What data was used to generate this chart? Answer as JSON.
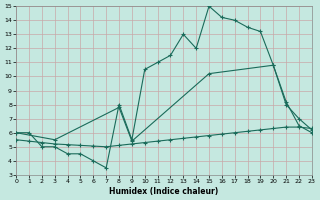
{
  "xlabel": "Humidex (Indice chaleur)",
  "xlim": [
    0,
    23
  ],
  "ylim": [
    3,
    15
  ],
  "yticks": [
    3,
    4,
    5,
    6,
    7,
    8,
    9,
    10,
    11,
    12,
    13,
    14,
    15
  ],
  "xticks": [
    0,
    1,
    2,
    3,
    4,
    5,
    6,
    7,
    8,
    9,
    10,
    11,
    12,
    13,
    14,
    15,
    16,
    17,
    18,
    19,
    20,
    21,
    22,
    23
  ],
  "bg_color": "#c5e8e0",
  "grid_color": "#c8a8a8",
  "line_color": "#1a6b5a",
  "line1_x": [
    0,
    1,
    2,
    3,
    4,
    5,
    6,
    7,
    8,
    9,
    10,
    11,
    12,
    13,
    14,
    15,
    16,
    17,
    18,
    19,
    20,
    21,
    22,
    23
  ],
  "line1_y": [
    6.0,
    6.0,
    5.0,
    5.0,
    4.5,
    4.5,
    4.0,
    3.5,
    8.0,
    5.5,
    10.5,
    11.0,
    11.5,
    13.0,
    12.0,
    15.0,
    14.2,
    14.0,
    13.5,
    13.2,
    10.8,
    8.0,
    7.0,
    6.2
  ],
  "line2_x": [
    0,
    3,
    8,
    9,
    15,
    20,
    21,
    22,
    23
  ],
  "line2_y": [
    6.0,
    5.5,
    7.8,
    5.4,
    10.2,
    10.8,
    8.2,
    6.5,
    6.0
  ],
  "line3_x": [
    0,
    1,
    2,
    3,
    4,
    5,
    6,
    7,
    8,
    9,
    10,
    11,
    12,
    13,
    14,
    15,
    16,
    17,
    18,
    19,
    20,
    21,
    22,
    23
  ],
  "line3_y": [
    5.5,
    5.4,
    5.3,
    5.2,
    5.15,
    5.1,
    5.05,
    5.0,
    5.1,
    5.2,
    5.3,
    5.4,
    5.5,
    5.6,
    5.7,
    5.8,
    5.9,
    6.0,
    6.1,
    6.2,
    6.3,
    6.4,
    6.4,
    6.3
  ]
}
